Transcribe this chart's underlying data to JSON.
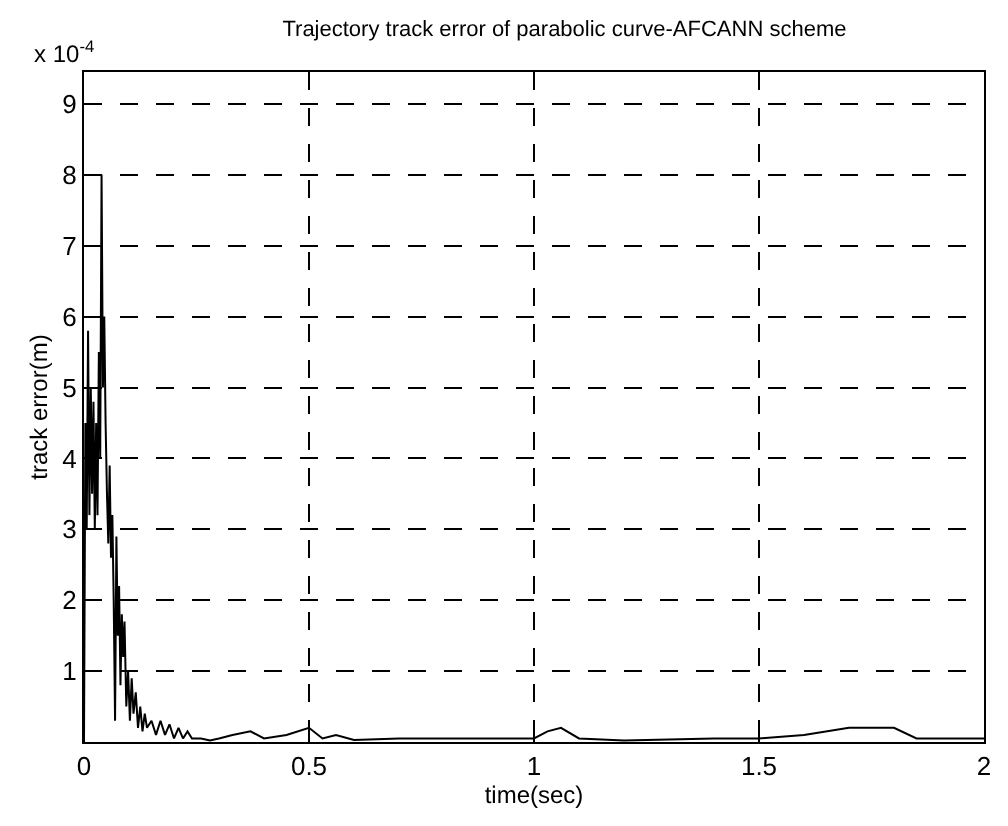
{
  "chart_data": {
    "type": "line",
    "title": "Trajectory track error of parabolic curve-AFCANN scheme",
    "xlabel": "time(sec)",
    "ylabel": "track error(m)",
    "annotations": [
      "x 10$^{-4}$"
    ],
    "x": [
      0,
      0.003,
      0.006,
      0.009,
      0.012,
      0.015,
      0.018,
      0.021,
      0.024,
      0.027,
      0.03,
      0.033,
      0.036,
      0.039,
      0.042,
      0.045,
      0.048,
      0.051,
      0.054,
      0.057,
      0.06,
      0.063,
      0.066,
      0.069,
      0.072,
      0.075,
      0.078,
      0.081,
      0.084,
      0.087,
      0.09,
      0.094,
      0.098,
      0.102,
      0.106,
      0.11,
      0.115,
      0.12,
      0.125,
      0.13,
      0.135,
      0.14,
      0.15,
      0.16,
      0.17,
      0.18,
      0.19,
      0.2,
      0.21,
      0.22,
      0.23,
      0.24,
      0.26,
      0.28,
      0.3,
      0.33,
      0.37,
      0.4,
      0.45,
      0.5,
      0.53,
      0.56,
      0.6,
      0.7,
      0.8,
      0.9,
      1.0,
      1.03,
      1.06,
      1.1,
      1.2,
      1.4,
      1.5,
      1.6,
      1.7,
      1.8,
      1.85,
      2.0
    ],
    "series": [
      {
        "color": "#000000",
        "values": [
          0,
          4.5,
          3,
          5.8,
          3.2,
          5,
          3.5,
          4.8,
          3,
          4.5,
          3.2,
          5.5,
          4,
          8,
          5,
          6,
          4.5,
          3.5,
          2.8,
          3.9,
          2.6,
          3.2,
          2,
          0.3,
          2.9,
          1.5,
          2.2,
          0.8,
          1.8,
          1.2,
          1.7,
          0.5,
          1.0,
          0.3,
          0.9,
          0.4,
          0.7,
          0.2,
          0.5,
          0.15,
          0.4,
          0.2,
          0.3,
          0.1,
          0.3,
          0.1,
          0.25,
          0.05,
          0.2,
          0.05,
          0.15,
          0.05,
          0.05,
          0.02,
          0.05,
          0.1,
          0.15,
          0.05,
          0.1,
          0.2,
          0.05,
          0.1,
          0.03,
          0.05,
          0.05,
          0.05,
          0.05,
          0.15,
          0.2,
          0.05,
          0.02,
          0.05,
          0.05,
          0.1,
          0.2,
          0.2,
          0.05,
          0.05
        ]
      }
    ],
    "xlim": [
      0,
      2
    ],
    "ylim": [
      0,
      9.45
    ],
    "xticks": [
      0,
      0.5,
      1,
      1.5,
      2
    ],
    "yticks": [
      1,
      2,
      3,
      4,
      5,
      6,
      7,
      8,
      9
    ],
    "grid": true
  }
}
